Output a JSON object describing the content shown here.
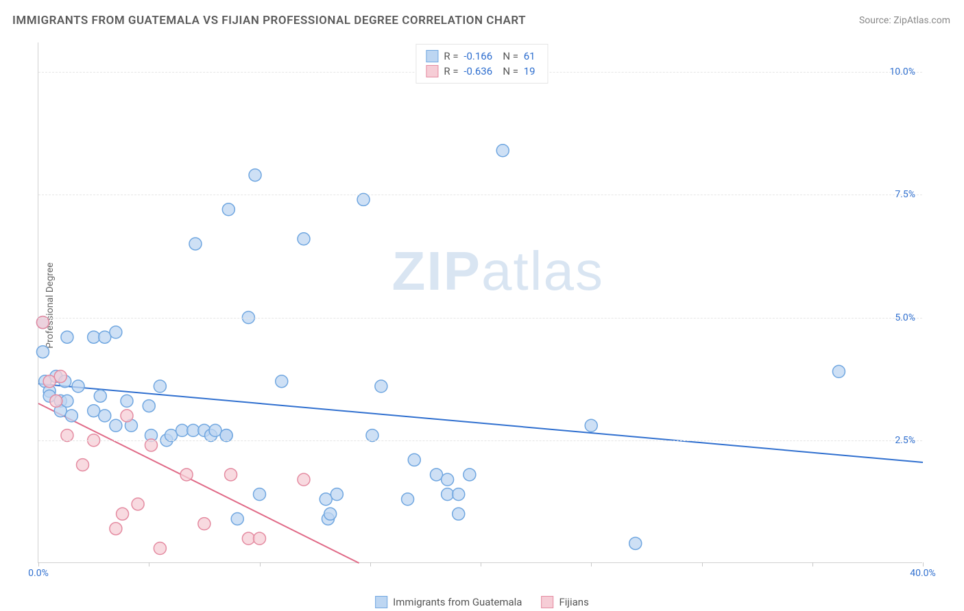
{
  "title": "IMMIGRANTS FROM GUATEMALA VS FIJIAN PROFESSIONAL DEGREE CORRELATION CHART",
  "source": "Source: ZipAtlas.com",
  "ylabel": "Professional Degree",
  "watermark": {
    "bold": "ZIP",
    "rest": "atlas"
  },
  "chart": {
    "type": "scatter",
    "xlim": [
      0,
      40
    ],
    "ylim": [
      0,
      10.6
    ],
    "x_ticks": [
      0,
      5,
      10,
      15,
      20,
      25,
      30,
      35,
      40
    ],
    "x_tick_labels": {
      "0": "0.0%",
      "40": "40.0%"
    },
    "y_gridlines": [
      2.5,
      5.0,
      7.5,
      10.0
    ],
    "y_tick_labels": [
      "2.5%",
      "5.0%",
      "7.5%",
      "10.0%"
    ],
    "background_color": "#ffffff",
    "grid_color": "#e5e5e5",
    "axis_color": "#d0d0d0",
    "tick_label_color": "#2f6fcf",
    "marker_radius": 9,
    "marker_stroke_width": 1.5,
    "trend_line_width": 2,
    "series": [
      {
        "key": "guatemala",
        "label": "Immigrants from Guatemala",
        "fill": "#bdd6f2",
        "stroke": "#6fa6e0",
        "line_color": "#2f6fcf",
        "r_value": "-0.166",
        "n_value": "61",
        "trend": {
          "x1": 0,
          "y1": 3.65,
          "x2": 40,
          "y2": 2.05
        },
        "points": [
          [
            0.2,
            4.9
          ],
          [
            0.2,
            4.3
          ],
          [
            0.3,
            3.7
          ],
          [
            0.5,
            3.5
          ],
          [
            0.5,
            3.4
          ],
          [
            0.8,
            3.8
          ],
          [
            1.0,
            3.3
          ],
          [
            1.0,
            3.1
          ],
          [
            1.3,
            4.6
          ],
          [
            1.2,
            3.7
          ],
          [
            1.3,
            3.3
          ],
          [
            1.5,
            3.0
          ],
          [
            1.8,
            3.6
          ],
          [
            2.5,
            4.6
          ],
          [
            3.0,
            4.6
          ],
          [
            2.5,
            3.1
          ],
          [
            2.8,
            3.4
          ],
          [
            3.5,
            4.7
          ],
          [
            3.0,
            3.0
          ],
          [
            3.5,
            2.8
          ],
          [
            4.0,
            3.3
          ],
          [
            4.2,
            2.8
          ],
          [
            5.0,
            3.2
          ],
          [
            5.1,
            2.6
          ],
          [
            5.5,
            3.6
          ],
          [
            5.8,
            2.5
          ],
          [
            6.0,
            2.6
          ],
          [
            6.5,
            2.7
          ],
          [
            7.0,
            2.7
          ],
          [
            7.1,
            6.5
          ],
          [
            7.5,
            2.7
          ],
          [
            7.8,
            2.6
          ],
          [
            8.0,
            2.7
          ],
          [
            8.5,
            2.6
          ],
          [
            8.5,
            2.6
          ],
          [
            8.6,
            7.2
          ],
          [
            9.5,
            5.0
          ],
          [
            9.0,
            0.9
          ],
          [
            9.8,
            7.9
          ],
          [
            10.0,
            1.4
          ],
          [
            11.0,
            3.7
          ],
          [
            12.0,
            6.6
          ],
          [
            13.0,
            1.3
          ],
          [
            13.1,
            0.9
          ],
          [
            13.2,
            1.0
          ],
          [
            13.5,
            1.4
          ],
          [
            14.7,
            7.4
          ],
          [
            15.1,
            2.6
          ],
          [
            15.5,
            3.6
          ],
          [
            16.7,
            1.3
          ],
          [
            17.0,
            2.1
          ],
          [
            18.0,
            1.8
          ],
          [
            18.5,
            1.7
          ],
          [
            18.5,
            1.4
          ],
          [
            19.0,
            1.4
          ],
          [
            19.5,
            1.8
          ],
          [
            21.0,
            8.4
          ],
          [
            25.0,
            2.8
          ],
          [
            27.0,
            0.4
          ],
          [
            36.2,
            3.9
          ],
          [
            19.0,
            1.0
          ]
        ]
      },
      {
        "key": "fijians",
        "label": "Fijians",
        "fill": "#f6cdd6",
        "stroke": "#e48aa0",
        "line_color": "#e06a87",
        "r_value": "-0.636",
        "n_value": "19",
        "trend": {
          "x1": 0,
          "y1": 3.25,
          "x2": 14.5,
          "y2": 0
        },
        "points": [
          [
            0.2,
            4.9
          ],
          [
            0.5,
            3.7
          ],
          [
            0.8,
            3.3
          ],
          [
            1.0,
            3.8
          ],
          [
            1.3,
            2.6
          ],
          [
            2.0,
            2.0
          ],
          [
            2.5,
            2.5
          ],
          [
            3.5,
            0.7
          ],
          [
            3.8,
            1.0
          ],
          [
            4.0,
            3.0
          ],
          [
            4.5,
            1.2
          ],
          [
            5.1,
            2.4
          ],
          [
            5.5,
            0.3
          ],
          [
            6.7,
            1.8
          ],
          [
            7.5,
            0.8
          ],
          [
            8.7,
            1.8
          ],
          [
            9.5,
            0.5
          ],
          [
            10.0,
            0.5
          ],
          [
            12.0,
            1.7
          ]
        ]
      }
    ]
  },
  "legend_top_prefix": {
    "r": "R =",
    "n": "N ="
  },
  "xlegend": [
    {
      "label": "Immigrants from Guatemala",
      "fill": "#bdd6f2",
      "stroke": "#6fa6e0"
    },
    {
      "label": "Fijians",
      "fill": "#f6cdd6",
      "stroke": "#e48aa0"
    }
  ]
}
